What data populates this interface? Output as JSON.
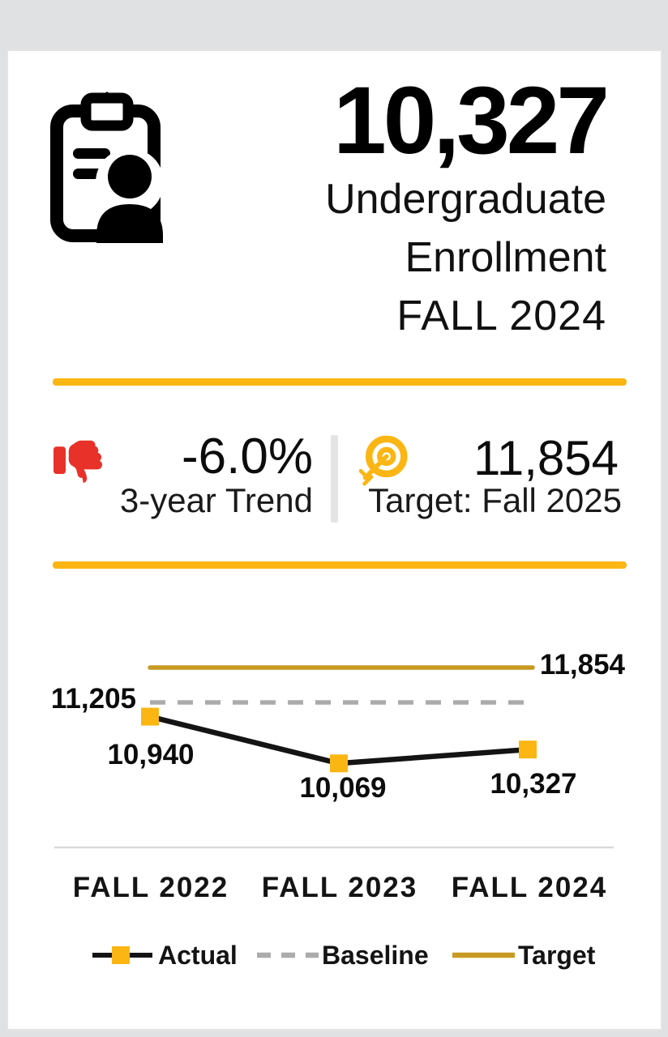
{
  "colors": {
    "page_bg": "#E0E1E3",
    "card_border": "#E4E4E4",
    "accent_yellow": "#FBB614",
    "red": "#E83129",
    "target_gold": "#C99A23",
    "baseline_gray": "#ABABAB",
    "axis_gray": "#D9D9D9",
    "ink": "#141414"
  },
  "header": {
    "icon": "enrollment-roster-icon",
    "value": "10,327",
    "title_line1": "Undergraduate",
    "title_line2": "Enrollment",
    "subtitle": "FALL 2024"
  },
  "stats": {
    "trend": {
      "icon": "thumbs-down-icon",
      "icon_color": "#E83129",
      "value": "-6.0%",
      "label": "3-year Trend"
    },
    "target": {
      "icon": "bullseye-target-icon",
      "icon_color": "#FBB614",
      "value": "11,854",
      "label": "Target: Fall 2025"
    }
  },
  "chart_data": {
    "type": "line",
    "categories": [
      "FALL 2022",
      "FALL 2023",
      "FALL 2024"
    ],
    "series": [
      {
        "name": "Actual",
        "values": [
          10940,
          10069,
          10327
        ],
        "color": "#141414",
        "marker": "square",
        "marker_color": "#FBB614"
      },
      {
        "name": "Baseline",
        "values": [
          11205,
          11205,
          11205
        ],
        "style": "dashed",
        "color": "#ABABAB"
      },
      {
        "name": "Target",
        "values": [
          11854,
          11854,
          11854
        ],
        "style": "solid",
        "color": "#C99A23"
      }
    ],
    "point_labels": [
      "10,940",
      "10,069",
      "10,327"
    ],
    "baseline_label": "11,205",
    "target_label": "11,854",
    "legend": [
      "Actual",
      "Baseline",
      "Target"
    ],
    "legend_position": "bottom",
    "grid": false,
    "y_axis_visible": false
  }
}
